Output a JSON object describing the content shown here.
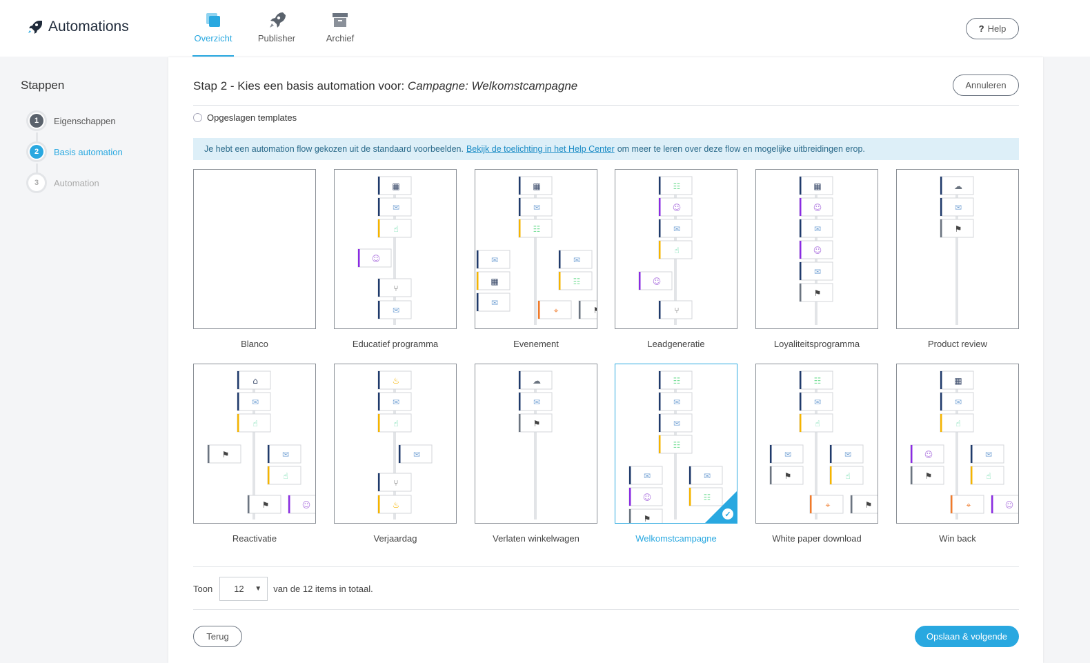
{
  "app": {
    "title": "Automations"
  },
  "nav": {
    "tabs": [
      {
        "label": "Overzicht",
        "icon": "overview-icon",
        "active": true
      },
      {
        "label": "Publisher",
        "icon": "rocket-icon",
        "active": false
      },
      {
        "label": "Archief",
        "icon": "archive-icon",
        "active": false
      }
    ],
    "help_label": "Help"
  },
  "sidebar": {
    "heading": "Stappen",
    "steps": [
      {
        "num": "1",
        "label": "Eigenschappen",
        "state": "done"
      },
      {
        "num": "2",
        "label": "Basis automation",
        "state": "active"
      },
      {
        "num": "3",
        "label": "Automation",
        "state": "todo"
      }
    ]
  },
  "main": {
    "heading_prefix": "Stap 2 - Kies een basis automation voor:",
    "heading_campaign": "Campagne: Welkomstcampagne",
    "cancel_label": "Annuleren",
    "radio_label": "Opgeslagen templates",
    "info_before": "Je hebt een automation flow gekozen uit de standaard voorbeelden.",
    "info_link": "Bekijk de toelichting in het Help Center",
    "info_after": "om meer te leren over deze flow en mogelijke uitbreidingen erop.",
    "templates": [
      {
        "name": "Blanco",
        "selected": false
      },
      {
        "name": "Educatief programma",
        "selected": false
      },
      {
        "name": "Evenement",
        "selected": false
      },
      {
        "name": "Leadgeneratie",
        "selected": false
      },
      {
        "name": "Loyaliteitsprogramma",
        "selected": false
      },
      {
        "name": "Product review",
        "selected": false
      },
      {
        "name": "Reactivatie",
        "selected": false
      },
      {
        "name": "Verjaardag",
        "selected": false
      },
      {
        "name": "Verlaten winkelwagen",
        "selected": false
      },
      {
        "name": "Welkomstcampagne",
        "selected": true
      },
      {
        "name": "White paper download",
        "selected": false
      },
      {
        "name": "Win back",
        "selected": false
      }
    ],
    "pager": {
      "label_before": "Toon",
      "value": "12",
      "label_after": "van de 12 items in totaal."
    },
    "back_label": "Terug",
    "next_label": "Opslaan & volgende"
  },
  "colors": {
    "accent": "#29a8e0",
    "navy": "#1f3a6b",
    "yellow": "#f5b400",
    "purple": "#8a2be2",
    "orange": "#f07a2a",
    "gray": "#6b7480"
  }
}
